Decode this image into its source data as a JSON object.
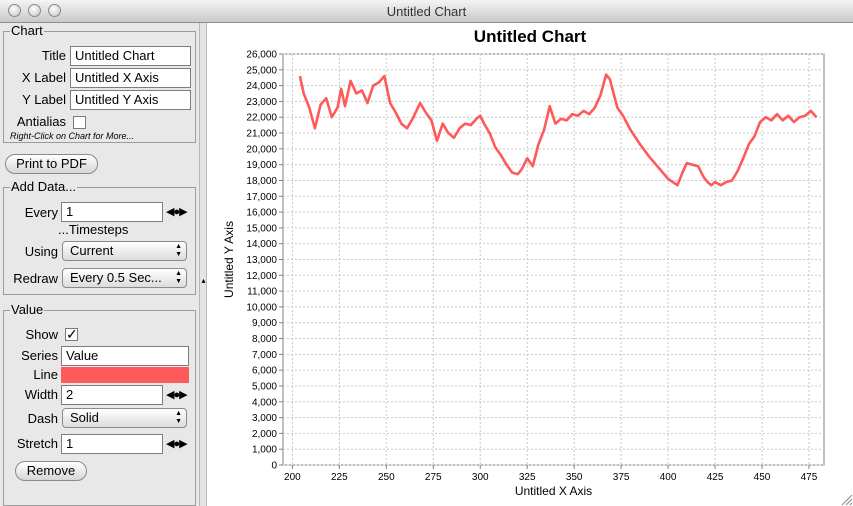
{
  "window": {
    "title": "Untitled Chart"
  },
  "chart_panel": {
    "legend": "Chart",
    "title_label": "Title",
    "title_value": "Untitled Chart",
    "xlabel_label": "X Label",
    "xlabel_value": "Untitled X Axis",
    "ylabel_label": "Y Label",
    "ylabel_value": "Untitled Y Axis",
    "antialias_label": "Antialias",
    "antialias_checked": false,
    "hint": "Right-Click on Chart for More..."
  },
  "print_button": "Print to PDF",
  "add_data": {
    "legend": "Add Data...",
    "every_label": "Every",
    "every_value": "1",
    "timesteps_label": "...Timesteps",
    "using_label": "Using",
    "using_value": "Current",
    "redraw_label": "Redraw",
    "redraw_value": "Every 0.5 Sec..."
  },
  "series_panel": {
    "legend": "Value",
    "show_label": "Show",
    "show_checked": true,
    "series_label": "Series",
    "series_value": "Value",
    "line_label": "Line",
    "line_color": "#ff5a5a",
    "width_label": "Width",
    "width_value": "2",
    "dash_label": "Dash",
    "dash_value": "Solid",
    "stretch_label": "Stretch",
    "stretch_value": "1",
    "remove_button": "Remove"
  },
  "icons": {
    "stepper": "stepper-arrows-icon",
    "popup": "popup-arrows-icon",
    "divider": "divider-knob-icon",
    "grip": "resize-grip-icon"
  },
  "chart_data": {
    "type": "line",
    "title": "Untitled Chart",
    "xlabel": "Untitled X Axis",
    "ylabel": "Untitled Y Axis",
    "xlim": [
      195,
      483
    ],
    "ylim": [
      0,
      26000
    ],
    "xticks": [
      200,
      225,
      250,
      275,
      300,
      325,
      350,
      375,
      400,
      425,
      450,
      475
    ],
    "yticks": [
      0,
      1000,
      2000,
      3000,
      4000,
      5000,
      6000,
      7000,
      8000,
      9000,
      10000,
      11000,
      12000,
      13000,
      14000,
      15000,
      16000,
      17000,
      18000,
      19000,
      20000,
      21000,
      22000,
      23000,
      24000,
      25000,
      26000
    ],
    "grid": true,
    "series": [
      {
        "color": "#ff5a5a",
        "x": [
          204,
          206,
          209,
          212,
          215,
          218,
          221,
          224,
          226,
          228,
          231,
          234,
          237,
          240,
          243,
          246,
          249,
          252,
          255,
          258,
          261,
          264,
          268,
          271,
          274,
          277,
          280,
          283,
          286,
          289,
          292,
          295,
          298,
          300,
          302,
          305,
          308,
          311,
          314,
          317,
          320,
          322,
          325,
          328,
          331,
          334,
          337,
          340,
          343,
          346,
          349,
          352,
          355,
          358,
          361,
          364,
          367,
          369,
          371,
          373,
          376,
          380,
          385,
          390,
          395,
          400,
          405,
          408,
          410,
          413,
          416,
          419,
          421,
          423,
          425,
          428,
          431,
          434,
          437,
          440,
          443,
          446,
          449,
          452,
          455,
          458,
          461,
          464,
          467,
          470,
          473,
          476,
          479
        ],
        "y": [
          24600,
          23500,
          22600,
          21300,
          22800,
          23200,
          22000,
          22600,
          23800,
          22700,
          24300,
          23500,
          23700,
          22900,
          24000,
          24200,
          24600,
          22900,
          22300,
          21600,
          21300,
          21900,
          22900,
          22300,
          21800,
          20500,
          21600,
          21000,
          20700,
          21300,
          21600,
          21500,
          21900,
          22100,
          21600,
          21000,
          20100,
          19600,
          19000,
          18500,
          18400,
          18700,
          19400,
          18900,
          20300,
          21200,
          22700,
          21600,
          21900,
          21800,
          22200,
          22100,
          22400,
          22200,
          22600,
          23400,
          24700,
          24400,
          23500,
          22600,
          22100,
          21200,
          20300,
          19500,
          18800,
          18100,
          17700,
          18600,
          19100,
          19000,
          18900,
          18200,
          17900,
          17700,
          17900,
          17700,
          17900,
          18000,
          18600,
          19400,
          20300,
          20800,
          21700,
          22000,
          21800,
          22200,
          21800,
          22100,
          21700,
          22000,
          22100,
          22400,
          22000
        ]
      }
    ]
  }
}
